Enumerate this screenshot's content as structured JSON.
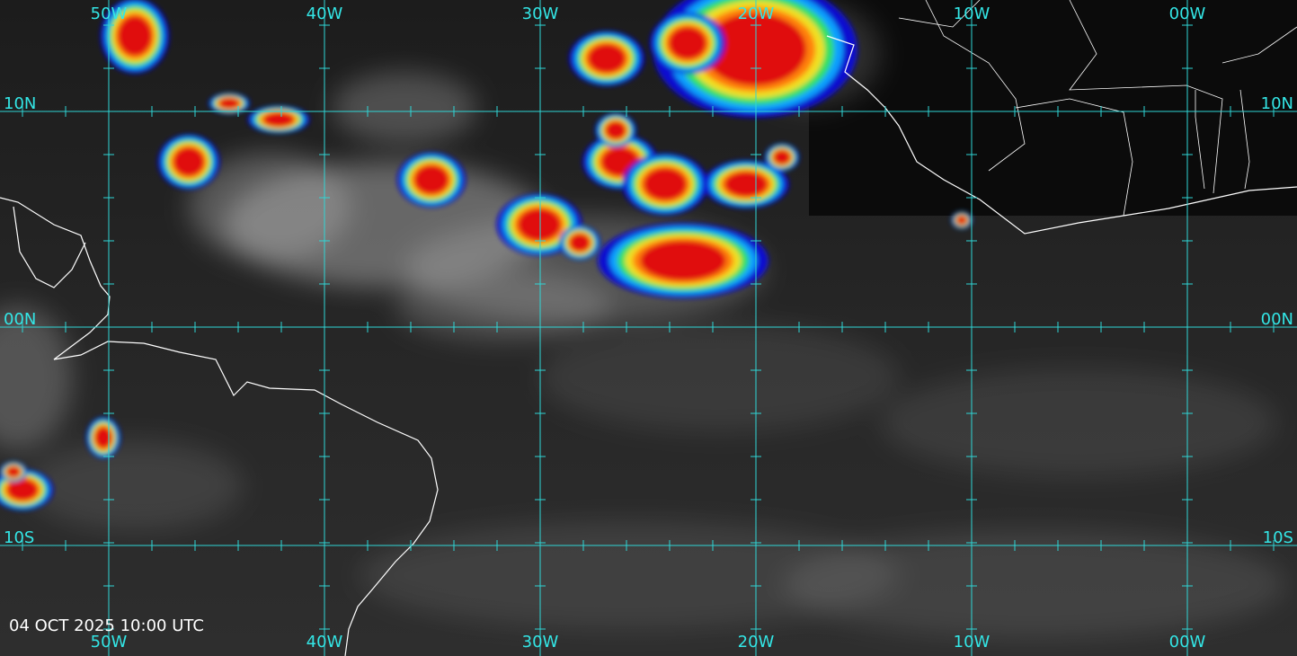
{
  "map": {
    "longitude_labels_top": [
      "50W",
      "40W",
      "30W",
      "20W",
      "10W",
      "00W"
    ],
    "longitude_labels_bottom": [
      "50W",
      "40W",
      "30W",
      "20W",
      "10W",
      "00W"
    ],
    "latitude_labels_left": [
      "10N",
      "00N",
      "10S"
    ],
    "latitude_labels_right": [
      "10N",
      "00N",
      "10S"
    ],
    "timestamp": "04 OCT 2025 10:00 UTC"
  }
}
